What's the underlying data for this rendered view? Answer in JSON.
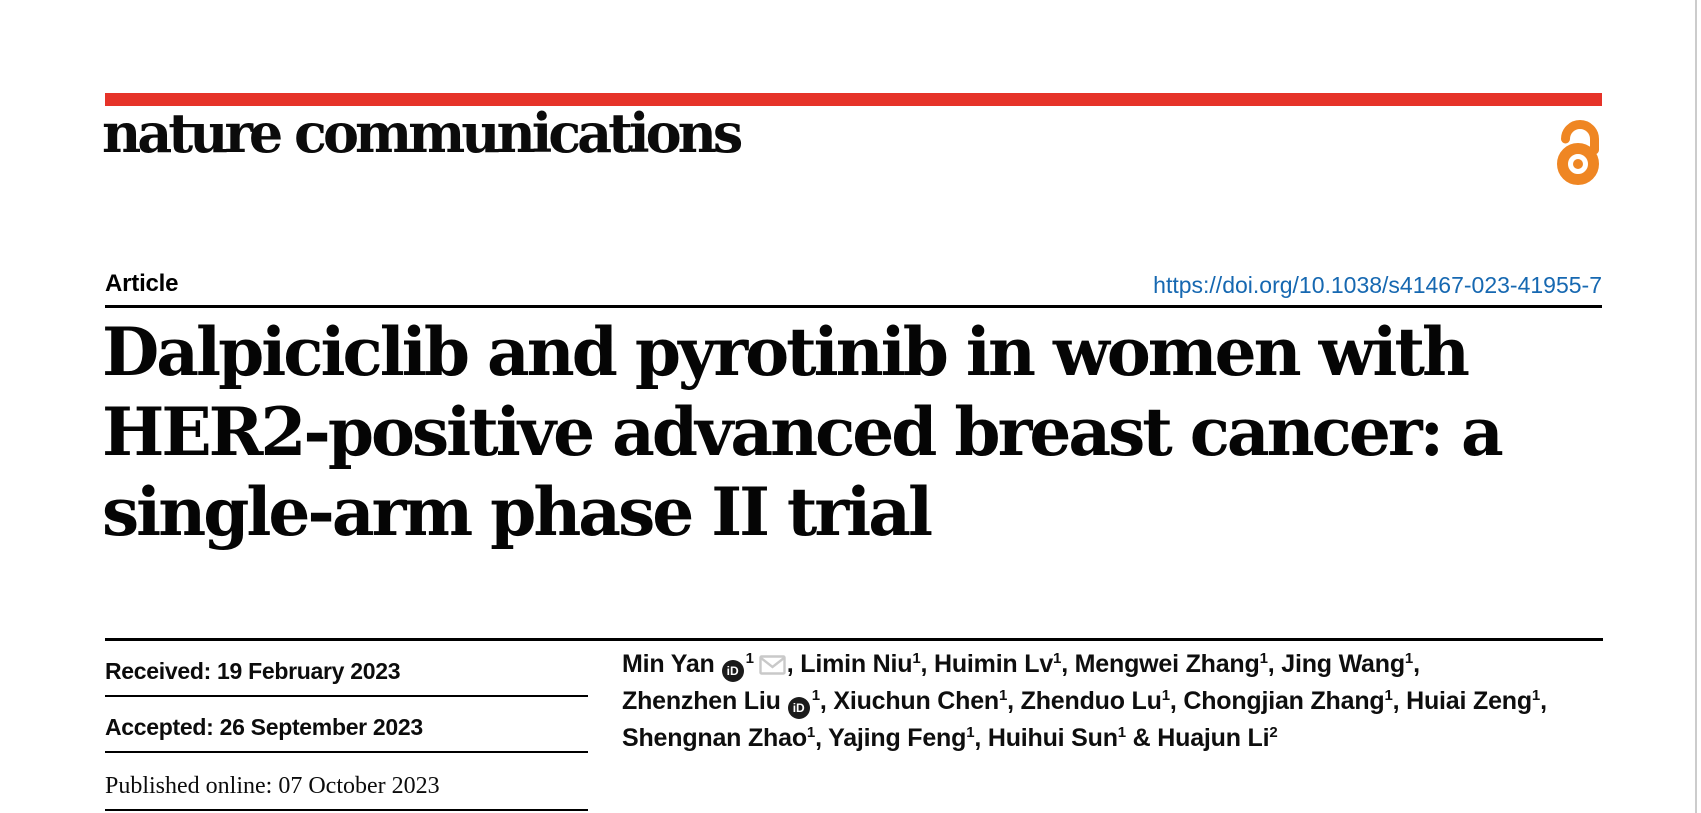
{
  "header": {
    "journal": "nature communications",
    "article_type": "Article",
    "doi": "https://doi.org/10.1038/s41467-023-41955-7"
  },
  "title": {
    "lines": [
      "Dalpiciclib and pyrotinib in women with",
      "HER2-positive advanced breast cancer: a",
      "single-arm phase II trial"
    ]
  },
  "dates": [
    {
      "text": "Received: 19 February 2023"
    },
    {
      "text": "Accepted: 26 September 2023"
    },
    {
      "text": "Published online: 07 October 2023"
    }
  ],
  "authors": {
    "lines": [
      [
        {
          "t": "Min Yan"
        },
        {
          "icon": "orcid"
        },
        {
          "sup": "1"
        },
        {
          "icon": "envelope"
        },
        {
          "t": ", Limin Niu"
        },
        {
          "sup": "1"
        },
        {
          "t": ", Huimin Lv"
        },
        {
          "sup": "1"
        },
        {
          "t": ", Mengwei Zhang"
        },
        {
          "sup": "1"
        },
        {
          "t": ", Jing Wang"
        },
        {
          "sup": "1"
        },
        {
          "t": ","
        }
      ],
      [
        {
          "t": "Zhenzhen Liu"
        },
        {
          "icon": "orcid"
        },
        {
          "sup": "1"
        },
        {
          "t": ", Xiuchun Chen"
        },
        {
          "sup": "1"
        },
        {
          "t": ", Zhenduo Lu"
        },
        {
          "sup": "1"
        },
        {
          "t": ", Chongjian Zhang"
        },
        {
          "sup": "1"
        },
        {
          "t": ", Huiai Zeng"
        },
        {
          "sup": "1"
        },
        {
          "t": ","
        }
      ],
      [
        {
          "t": "Shengnan Zhao"
        },
        {
          "sup": "1"
        },
        {
          "t": ", Yajing Feng"
        },
        {
          "sup": "1"
        },
        {
          "t": ", Huihui Sun"
        },
        {
          "sup": "1"
        },
        {
          "t": " & Huajun Li"
        },
        {
          "sup": "2"
        }
      ]
    ]
  },
  "icons": {
    "open_access": "open-access-padlock",
    "orcid": "orcid-id",
    "envelope": "email-envelope"
  },
  "colors": {
    "brand_red": "#e63329",
    "open_access_orange": "#ef8623",
    "link_blue": "#1668b1",
    "envelope_gray": "#c9c9c9"
  }
}
